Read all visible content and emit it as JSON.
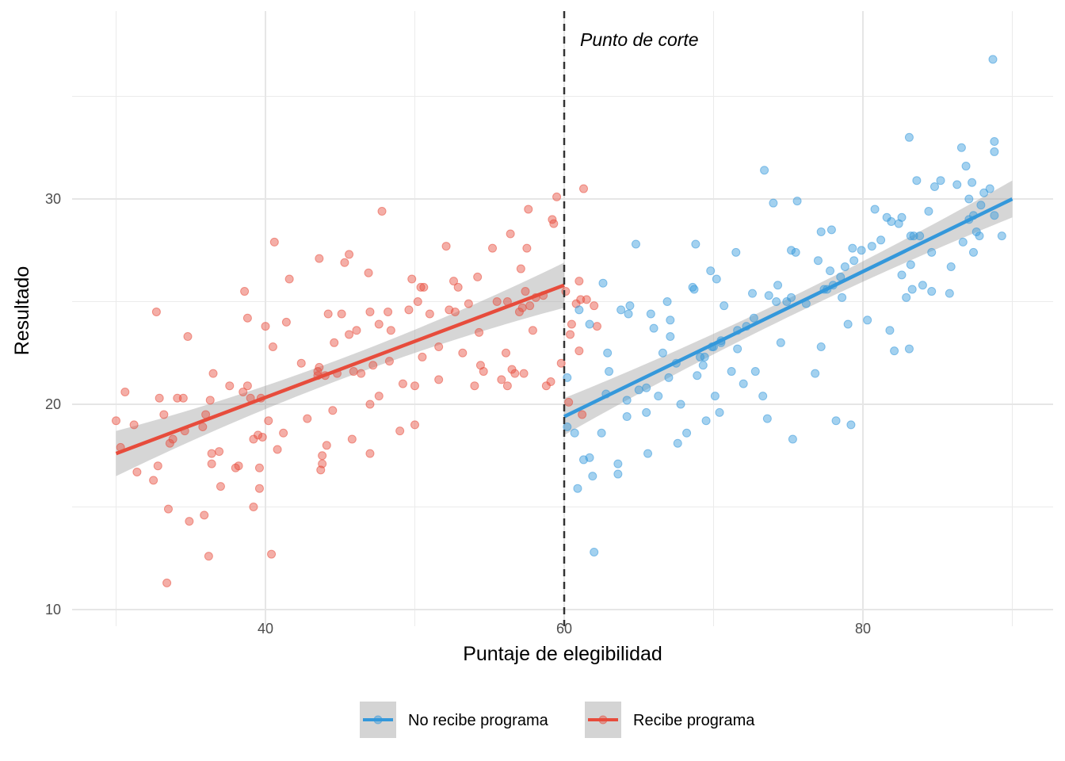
{
  "chart_data": {
    "type": "scatter",
    "title": "",
    "xlabel": "Puntaje de elegibilidad",
    "ylabel": "Resultado",
    "xlim": [
      27,
      93.5
    ],
    "ylim": [
      9.9,
      39.5
    ],
    "x_ticks": [
      40,
      60,
      80
    ],
    "x_tick_labels": [
      "40",
      "60",
      "80"
    ],
    "y_ticks": [
      10,
      20,
      30
    ],
    "y_tick_labels": [
      "10",
      "20",
      "30"
    ],
    "x_minor": [
      30,
      50,
      70,
      90
    ],
    "y_minor": [
      15,
      25,
      35
    ],
    "grid": true,
    "cutoff": {
      "x": 60,
      "label": "Punto de corte",
      "style": "dashed",
      "color": "#333333"
    },
    "legend": {
      "position": "bottom",
      "entries": [
        {
          "key": "no",
          "label": "No recibe programa",
          "color": "#3498DB"
        },
        {
          "key": "si",
          "label": "Recibe programa",
          "color": "#E74C3C"
        }
      ]
    },
    "series": [
      {
        "name": "Recibe programa",
        "color": "#E74C3C",
        "fit": {
          "x0": 30,
          "y0": 17.6,
          "x1": 60,
          "y1": 25.8,
          "ci_halfwidth_ends": 1.1,
          "ci_halfwidth_mid": 0.5
        },
        "points": [
          [
            30,
            19.2
          ],
          [
            30.3,
            17.9
          ],
          [
            30.6,
            20.6
          ],
          [
            31.2,
            19
          ],
          [
            31.4,
            16.7
          ],
          [
            32.5,
            16.3
          ],
          [
            32.8,
            17
          ],
          [
            32.7,
            24.5
          ],
          [
            32.9,
            20.3
          ],
          [
            33.2,
            19.5
          ],
          [
            33.4,
            11.3
          ],
          [
            33.5,
            14.9
          ],
          [
            33.6,
            18.1
          ],
          [
            33.8,
            18.3
          ],
          [
            34.1,
            20.3
          ],
          [
            34.5,
            20.3
          ],
          [
            34.6,
            18.7
          ],
          [
            34.8,
            23.3
          ],
          [
            34.9,
            14.3
          ],
          [
            35.8,
            18.9
          ],
          [
            35.9,
            14.6
          ],
          [
            36,
            19.5
          ],
          [
            36.2,
            12.6
          ],
          [
            36.3,
            20.2
          ],
          [
            36.4,
            17.1
          ],
          [
            36.5,
            21.5
          ],
          [
            36.4,
            17.6
          ],
          [
            36.9,
            17.7
          ],
          [
            37,
            16
          ],
          [
            37.6,
            20.9
          ],
          [
            38,
            16.9
          ],
          [
            38.2,
            17
          ],
          [
            38.5,
            20.6
          ],
          [
            38.6,
            25.5
          ],
          [
            38.8,
            20.9
          ],
          [
            38.8,
            24.2
          ],
          [
            39,
            20.3
          ],
          [
            39.2,
            18.3
          ],
          [
            39.2,
            15
          ],
          [
            39.5,
            18.5
          ],
          [
            39.6,
            15.9
          ],
          [
            39.6,
            16.9
          ],
          [
            39.7,
            20.3
          ],
          [
            39.8,
            18.4
          ],
          [
            40,
            23.8
          ],
          [
            40.2,
            19.2
          ],
          [
            40.4,
            12.7
          ],
          [
            40.5,
            22.8
          ],
          [
            40.6,
            27.9
          ],
          [
            40.8,
            17.8
          ],
          [
            41.2,
            18.6
          ],
          [
            41.4,
            24
          ],
          [
            41.6,
            26.1
          ],
          [
            42.4,
            22
          ],
          [
            42.8,
            19.3
          ],
          [
            43.5,
            21.6
          ],
          [
            43.5,
            21.4
          ],
          [
            43.6,
            21.8
          ],
          [
            43.6,
            27.1
          ],
          [
            43.7,
            16.8
          ],
          [
            43.8,
            17.5
          ],
          [
            43.8,
            17.1
          ],
          [
            44,
            21.4
          ],
          [
            44.1,
            18
          ],
          [
            44.2,
            24.4
          ],
          [
            44.5,
            19.7
          ],
          [
            44.6,
            23
          ],
          [
            44.8,
            21.5
          ],
          [
            45.1,
            24.4
          ],
          [
            45.3,
            26.9
          ],
          [
            45.6,
            27.3
          ],
          [
            45.6,
            23.4
          ],
          [
            45.8,
            18.3
          ],
          [
            45.9,
            21.6
          ],
          [
            46.1,
            23.6
          ],
          [
            46.4,
            21.5
          ],
          [
            46.9,
            26.4
          ],
          [
            47,
            24.5
          ],
          [
            47,
            17.6
          ],
          [
            47,
            20
          ],
          [
            47.2,
            21.9
          ],
          [
            47.6,
            20.4
          ],
          [
            47.6,
            23.9
          ],
          [
            47.8,
            29.4
          ],
          [
            48.2,
            24.5
          ],
          [
            48.3,
            22.1
          ],
          [
            48.4,
            23.6
          ],
          [
            49,
            18.7
          ],
          [
            49.2,
            21
          ],
          [
            49.6,
            24.6
          ],
          [
            49.8,
            26.1
          ],
          [
            50,
            20.9
          ],
          [
            50,
            19
          ],
          [
            50.2,
            25
          ],
          [
            50.4,
            25.7
          ],
          [
            50.5,
            22.3
          ],
          [
            50.6,
            25.7
          ],
          [
            51,
            24.4
          ],
          [
            51.6,
            22.8
          ],
          [
            51.6,
            21.2
          ],
          [
            52.1,
            27.7
          ],
          [
            52.3,
            24.6
          ],
          [
            52.6,
            26
          ],
          [
            52.7,
            24.5
          ],
          [
            52.9,
            25.7
          ],
          [
            53.2,
            22.5
          ],
          [
            53.6,
            24.9
          ],
          [
            54,
            20.9
          ],
          [
            54.2,
            26.2
          ],
          [
            54.3,
            23.5
          ],
          [
            54.4,
            21.9
          ],
          [
            54.6,
            21.6
          ],
          [
            55.2,
            27.6
          ],
          [
            55.5,
            25
          ],
          [
            55.8,
            21.2
          ],
          [
            56.1,
            22.5
          ],
          [
            56.2,
            20.9
          ],
          [
            56.2,
            25
          ],
          [
            56.4,
            28.3
          ],
          [
            56.5,
            21.7
          ],
          [
            56.7,
            21.5
          ],
          [
            57,
            24.5
          ],
          [
            57.1,
            26.6
          ],
          [
            57.2,
            24.7
          ],
          [
            57.3,
            21.5
          ],
          [
            57.4,
            25.5
          ],
          [
            57.5,
            27.6
          ],
          [
            57.6,
            29.5
          ],
          [
            57.7,
            24.8
          ],
          [
            57.9,
            23.6
          ],
          [
            58.1,
            25.2
          ],
          [
            58.6,
            25.3
          ],
          [
            58.8,
            20.9
          ],
          [
            59.1,
            21.1
          ],
          [
            59.2,
            29
          ],
          [
            59.3,
            28.8
          ],
          [
            59.5,
            30.1
          ],
          [
            59.8,
            22
          ],
          [
            60.1,
            25.5
          ],
          [
            60.3,
            20.1
          ],
          [
            60.4,
            23.4
          ],
          [
            60.5,
            23.9
          ],
          [
            60.8,
            24.9
          ],
          [
            61,
            22.6
          ],
          [
            61,
            26
          ],
          [
            61.1,
            25.1
          ],
          [
            61.2,
            19.5
          ],
          [
            61.3,
            30.5
          ],
          [
            61.5,
            25.1
          ],
          [
            62,
            24.8
          ],
          [
            62.2,
            23.8
          ]
        ]
      },
      {
        "name": "No recibe programa",
        "color": "#3498DB",
        "fit": {
          "x0": 60,
          "y0": 19.4,
          "x1": 90,
          "y1": 30.0,
          "ci_halfwidth_ends": 0.9,
          "ci_halfwidth_mid": 0.45
        },
        "points": [
          [
            60.2,
            18.9
          ],
          [
            60.2,
            21.3
          ],
          [
            60.7,
            18.6
          ],
          [
            60.9,
            15.9
          ],
          [
            61,
            24.6
          ],
          [
            61.3,
            17.3
          ],
          [
            61.7,
            17.4
          ],
          [
            61.7,
            23.9
          ],
          [
            61.9,
            16.5
          ],
          [
            62,
            12.8
          ],
          [
            62.5,
            18.6
          ],
          [
            62.6,
            25.9
          ],
          [
            62.8,
            20.5
          ],
          [
            62.9,
            22.5
          ],
          [
            63,
            21.6
          ],
          [
            63.6,
            17.1
          ],
          [
            63.6,
            16.6
          ],
          [
            63.8,
            24.6
          ],
          [
            64.2,
            20.2
          ],
          [
            64.2,
            19.4
          ],
          [
            64.3,
            24.4
          ],
          [
            64.4,
            24.8
          ],
          [
            64.8,
            27.8
          ],
          [
            65,
            20.7
          ],
          [
            65.5,
            20.8
          ],
          [
            65.5,
            19.6
          ],
          [
            65.6,
            17.6
          ],
          [
            65.8,
            24.4
          ],
          [
            66,
            23.7
          ],
          [
            66.3,
            20.4
          ],
          [
            66.6,
            22.5
          ],
          [
            66.9,
            25
          ],
          [
            67,
            21.3
          ],
          [
            67.1,
            24.1
          ],
          [
            67.1,
            23.3
          ],
          [
            67.5,
            22
          ],
          [
            67.6,
            18.1
          ],
          [
            67.8,
            20
          ],
          [
            68.2,
            18.6
          ],
          [
            68.6,
            25.7
          ],
          [
            68.7,
            25.6
          ],
          [
            68.8,
            27.8
          ],
          [
            68.9,
            21.4
          ],
          [
            69.1,
            22.3
          ],
          [
            69.3,
            21.9
          ],
          [
            69.4,
            22.3
          ],
          [
            69.5,
            19.2
          ],
          [
            69.8,
            26.5
          ],
          [
            69.9,
            22.8
          ],
          [
            70,
            22.8
          ],
          [
            70.1,
            20.4
          ],
          [
            70.2,
            26.1
          ],
          [
            70.4,
            19.6
          ],
          [
            70.5,
            23
          ],
          [
            70.5,
            23.1
          ],
          [
            70.7,
            24.8
          ],
          [
            71.2,
            21.6
          ],
          [
            71.5,
            27.4
          ],
          [
            71.6,
            23.6
          ],
          [
            71.6,
            22.7
          ],
          [
            72,
            21
          ],
          [
            72.2,
            23.8
          ],
          [
            72.6,
            25.4
          ],
          [
            72.7,
            24.2
          ],
          [
            72.8,
            21.6
          ],
          [
            73.3,
            20.4
          ],
          [
            73.4,
            31.4
          ],
          [
            73.6,
            19.3
          ],
          [
            73.7,
            25.3
          ],
          [
            74,
            29.8
          ],
          [
            74.2,
            25
          ],
          [
            74.3,
            25.8
          ],
          [
            74.5,
            23
          ],
          [
            74.9,
            25
          ],
          [
            75.2,
            25.2
          ],
          [
            75.2,
            27.5
          ],
          [
            75.3,
            18.3
          ],
          [
            75.5,
            27.4
          ],
          [
            75.6,
            29.9
          ],
          [
            76.2,
            24.9
          ],
          [
            76.8,
            21.5
          ],
          [
            77,
            27
          ],
          [
            77.2,
            22.8
          ],
          [
            77.2,
            28.4
          ],
          [
            77.4,
            25.6
          ],
          [
            77.6,
            25.6
          ],
          [
            77.8,
            26.5
          ],
          [
            77.9,
            28.5
          ],
          [
            78,
            25.8
          ],
          [
            78.2,
            19.2
          ],
          [
            78.5,
            26.2
          ],
          [
            78.6,
            25.2
          ],
          [
            78.8,
            26.7
          ],
          [
            79,
            23.9
          ],
          [
            79.2,
            19
          ],
          [
            79.3,
            27.6
          ],
          [
            79.4,
            27
          ],
          [
            79.9,
            27.5
          ],
          [
            80.3,
            24.1
          ],
          [
            80.6,
            27.7
          ],
          [
            80.8,
            29.5
          ],
          [
            81.2,
            28
          ],
          [
            81.6,
            29.1
          ],
          [
            81.9,
            28.9
          ],
          [
            81.8,
            23.6
          ],
          [
            82.1,
            22.6
          ],
          [
            82.4,
            28.8
          ],
          [
            82.6,
            29.1
          ],
          [
            82.6,
            26.3
          ],
          [
            82.9,
            25.2
          ],
          [
            83.1,
            22.7
          ],
          [
            83.1,
            33
          ],
          [
            83.2,
            26.8
          ],
          [
            83.2,
            28.2
          ],
          [
            83.3,
            25.6
          ],
          [
            83.4,
            28.2
          ],
          [
            83.6,
            30.9
          ],
          [
            83.8,
            28.2
          ],
          [
            84,
            25.8
          ],
          [
            84.4,
            29.4
          ],
          [
            84.6,
            25.5
          ],
          [
            84.6,
            27.4
          ],
          [
            84.8,
            30.6
          ],
          [
            85.2,
            30.9
          ],
          [
            85.8,
            25.4
          ],
          [
            85.9,
            26.7
          ],
          [
            86.3,
            30.7
          ],
          [
            86.6,
            32.5
          ],
          [
            86.7,
            27.9
          ],
          [
            86.9,
            31.6
          ],
          [
            87.1,
            29
          ],
          [
            87.1,
            30
          ],
          [
            87.3,
            30.8
          ],
          [
            87.4,
            27.4
          ],
          [
            87.4,
            29.2
          ],
          [
            87.6,
            28.4
          ],
          [
            87.8,
            28.2
          ],
          [
            87.9,
            29.7
          ],
          [
            88.1,
            30.3
          ],
          [
            88.5,
            30.5
          ],
          [
            88.7,
            36.8
          ],
          [
            88.8,
            29.2
          ],
          [
            88.8,
            32.8
          ],
          [
            88.8,
            32.3
          ],
          [
            89.3,
            28.2
          ]
        ]
      }
    ]
  }
}
